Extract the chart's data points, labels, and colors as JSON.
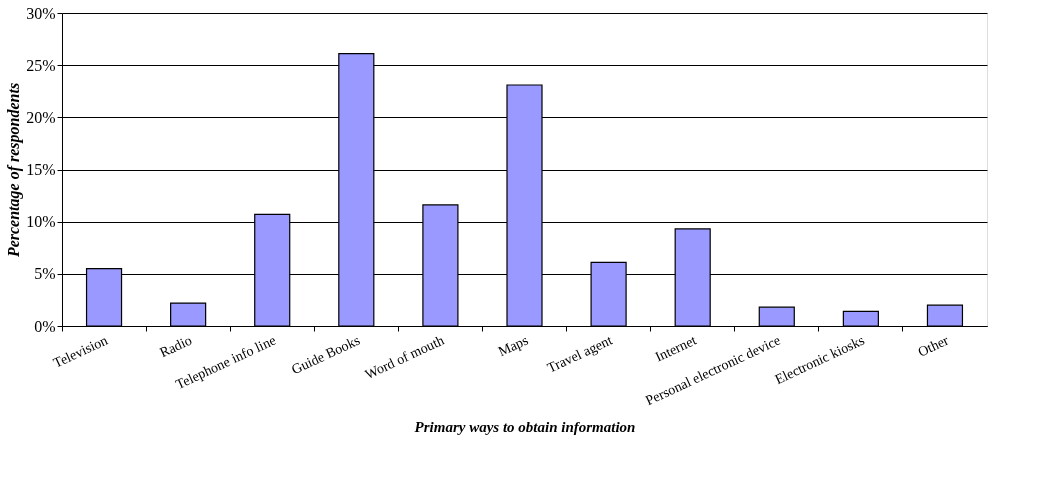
{
  "chart_data": {
    "type": "bar",
    "categories": [
      "Television",
      "Radio",
      "Telephone info line",
      "Guide Books",
      "Word of mouth",
      "Maps",
      "Travel agent",
      "Internet",
      "Personal electronic device",
      "Electronic kiosks",
      "Other"
    ],
    "values": [
      5.5,
      2.2,
      10.7,
      26.1,
      11.6,
      23.1,
      6.1,
      9.3,
      1.8,
      1.4,
      2.0
    ],
    "color": "#9999ff",
    "xlabel": "Primary ways to obtain information",
    "ylabel": "Percentage of respondents",
    "ylim": [
      0,
      30
    ],
    "yticks": [
      {
        "value": 0,
        "label": "0%"
      },
      {
        "value": 5,
        "label": "5%"
      },
      {
        "value": 10,
        "label": "10%"
      },
      {
        "value": 15,
        "label": "15%"
      },
      {
        "value": 20,
        "label": "20%"
      },
      {
        "value": 25,
        "label": "25%"
      },
      {
        "value": 30,
        "label": "30%"
      }
    ],
    "grid": "y"
  }
}
